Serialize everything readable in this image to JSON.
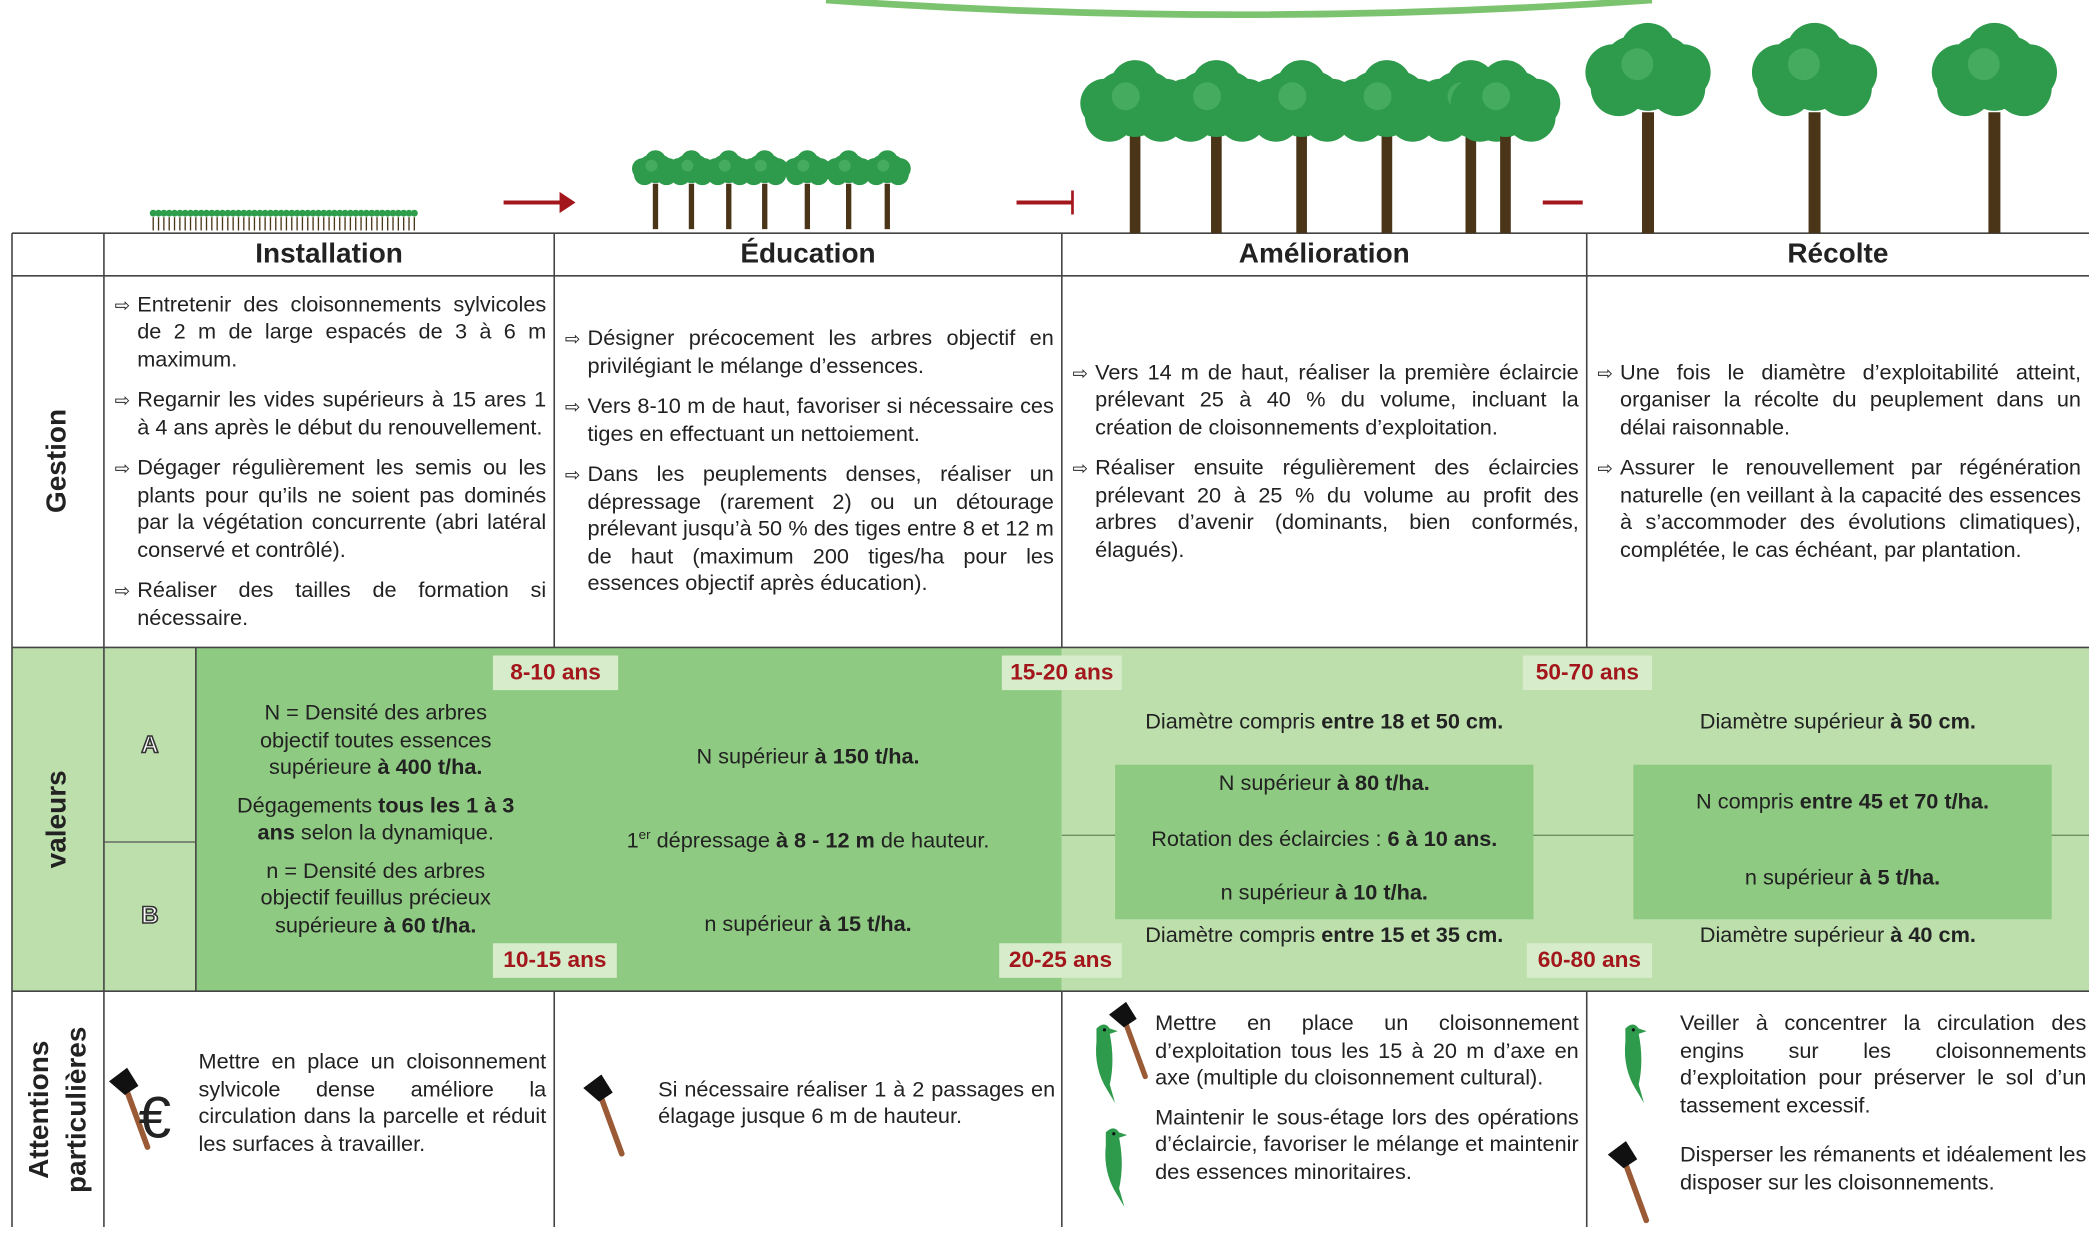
{
  "header": {
    "columns": [
      "Installation",
      "Éducation",
      "Amélioration",
      "Récolte"
    ]
  },
  "rows": {
    "gestion": {
      "label": "Gestion",
      "cells": [
        [
          "Entretenir des cloisonnements sylvicoles de 2 m de large espacés de 3 à 6 m maximum.",
          "Regarnir les vides supérieurs à 15 ares 1 à 4 ans après le début du renouvellement.",
          "Dégager régulièrement les semis ou les plants pour qu’ils ne soient pas dominés par la végétation concurrente (abri latéral conservé et contrôlé).",
          "Réaliser des tailles de formation si nécessaire."
        ],
        [
          "Désigner précocement les arbres objectif en privilégiant le mélange d’essences.",
          "Vers 8-10 m de haut, favoriser si nécessaire ces tiges en effectuant un nettoiement.",
          "Dans les peuplements denses, réaliser un dépressage (rarement 2) ou un détourage prélevant jusqu’à 50 % des tiges entre 8 et 12 m de haut (maximum 200 tiges/ha pour les essences objectif après éducation)."
        ],
        [
          "Vers 14 m de haut, réaliser la première éclaircie prélevant 25 à 40 % du volume, incluant la création de cloisonnements d’exploitation.",
          "Réaliser ensuite régulièrement des éclaircies prélevant 20 à 25 % du volume au profit des arbres d’avenir (dominants, bien conformés, élagués)."
        ],
        [
          "Une fois le diamètre d’exploitabilité atteint, organiser la récolte du peuplement dans un délai raisonnable.",
          "Assurer le renouvellement par régénération naturelle (en veillant à la capacité des essences à s’accommoder des évolutions climatiques), complétée, le cas échéant, par plantation."
        ]
      ]
    },
    "valeurs": {
      "label": "valeurs",
      "sub": [
        "A",
        "B"
      ],
      "ages_top": [
        "8-10 ans",
        "15-20 ans",
        "50-70 ans"
      ],
      "ages_bottom": [
        "10-15 ans",
        "20-25 ans",
        "60-80 ans"
      ],
      "installation": [
        [
          {
            "text": "N = Densité des arbres objectif toutes essences supérieure "
          },
          {
            "text": "à  400 t/ha.",
            "bold": true
          }
        ],
        [
          {
            "text": "Dégagements "
          },
          {
            "text": "tous les 1  à 3 ans",
            "bold": true
          },
          {
            "text": " selon la dynamique."
          }
        ],
        [
          {
            "text": "n = Densité des arbres objectif feuillus précieux supérieure "
          },
          {
            "text": "à 60 t/ha.",
            "bold": true
          }
        ]
      ],
      "education": [
        [
          {
            "text": "N supérieur "
          },
          {
            "text": "à 150 t/ha.",
            "bold": true
          }
        ],
        [
          {
            "text": "1"
          },
          {
            "text": "er",
            "sup": true
          },
          {
            "text": " dépressage "
          },
          {
            "text": "à 8 - 12 m",
            "bold": true
          },
          {
            "text": " de hauteur."
          }
        ],
        [
          {
            "text": "n supérieur "
          },
          {
            "text": "à 15 t/ha.",
            "bold": true
          }
        ]
      ],
      "amelioration": {
        "top": [
          {
            "text": "Diamètre compris "
          },
          {
            "text": "entre 18 et 50 cm.",
            "bold": true
          }
        ],
        "box": [
          [
            {
              "text": "N supérieur "
            },
            {
              "text": "à 80 t/ha.",
              "bold": true
            }
          ],
          [
            {
              "text": "Rotation des éclaircies : "
            },
            {
              "text": "6 à 10 ans.",
              "bold": true
            }
          ],
          [
            {
              "text": "n supérieur "
            },
            {
              "text": "à 10 t/ha.",
              "bold": true
            }
          ]
        ],
        "bottom": [
          {
            "text": "Diamètre compris "
          },
          {
            "text": "entre 15 et 35 cm.",
            "bold": true
          }
        ]
      },
      "recolte": {
        "top": [
          {
            "text": "Diamètre supérieur "
          },
          {
            "text": "à 50 cm.",
            "bold": true
          }
        ],
        "box": [
          [
            {
              "text": "N compris "
            },
            {
              "text": "entre 45 et 70 t/ha.",
              "bold": true
            }
          ],
          [
            {
              "text": "n supérieur "
            },
            {
              "text": "à 5 t/ha.",
              "bold": true
            }
          ]
        ],
        "bottom": [
          {
            "text": "Diamètre supérieur "
          },
          {
            "text": "à 40 cm.",
            "bold": true
          }
        ]
      }
    },
    "attentions": {
      "label": [
        "Attentions",
        "particulières"
      ],
      "euro_icon": "€",
      "cells": [
        [
          "Mettre en place un cloisonnement sylvicole dense améliore la circulation dans la parcelle et réduit les surfaces à travailler."
        ],
        [
          "Si nécessaire réaliser 1 à 2 passages en élagage jusque 6 m de hauteur."
        ],
        [
          "Mettre en place un cloisonnement d’exploitation tous les 15 à 20 m d’axe en axe (multiple du cloisonnement cultural).",
          "Maintenir le sous-étage lors des opérations d’éclaircie, favoriser le mélange et maintenir des essences minoritaires."
        ],
        [
          "Veiller à concentrer la circulation des engins sur les cloisonnements d’exploitation pour préserver le sol d’un tassement excessif.",
          "Disperser les rémanents et idéalement les disposer sur les cloisonnements."
        ]
      ]
    }
  }
}
